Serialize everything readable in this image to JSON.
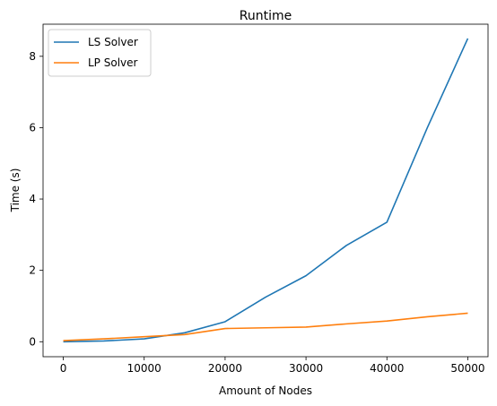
{
  "chart_data": {
    "type": "line",
    "title": "Runtime",
    "xlabel": "Amount of Nodes",
    "ylabel": "Time (s)",
    "xlim": [
      -2500,
      52500
    ],
    "ylim": [
      -0.42,
      8.9
    ],
    "x_ticks": [
      0,
      10000,
      20000,
      30000,
      40000,
      50000
    ],
    "y_ticks": [
      0,
      2,
      4,
      6,
      8
    ],
    "legend_position": "top-left",
    "grid": false,
    "series": [
      {
        "name": "LS Solver",
        "color": "#1f77b4",
        "x": [
          0,
          5000,
          10000,
          15000,
          20000,
          25000,
          30000,
          35000,
          40000,
          45000,
          50000
        ],
        "y": [
          0.0,
          0.02,
          0.08,
          0.25,
          0.56,
          1.25,
          1.85,
          2.7,
          3.35,
          6.0,
          8.5
        ]
      },
      {
        "name": "LP Solver",
        "color": "#ff7f0e",
        "x": [
          0,
          5000,
          10000,
          15000,
          20000,
          25000,
          30000,
          35000,
          40000,
          45000,
          50000
        ],
        "y": [
          0.03,
          0.08,
          0.14,
          0.2,
          0.37,
          0.39,
          0.41,
          0.5,
          0.58,
          0.7,
          0.8
        ]
      }
    ]
  }
}
